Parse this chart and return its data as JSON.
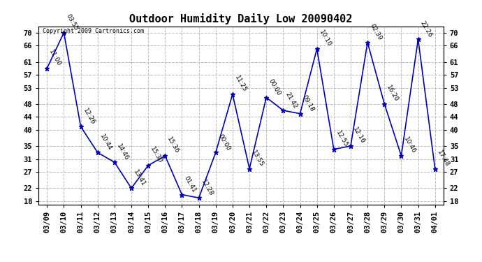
{
  "title": "Outdoor Humidity Daily Low 20090402",
  "copyright": "Copyright 2009 Cartronics.com",
  "x_labels": [
    "03/09",
    "03/10",
    "03/11",
    "03/12",
    "03/13",
    "03/14",
    "03/15",
    "03/16",
    "03/17",
    "03/18",
    "03/19",
    "03/20",
    "03/21",
    "03/22",
    "03/23",
    "03/24",
    "03/25",
    "03/26",
    "03/27",
    "03/28",
    "03/29",
    "03/30",
    "03/31",
    "04/01"
  ],
  "y_values": [
    59,
    70,
    41,
    33,
    30,
    22,
    29,
    32,
    20,
    19,
    33,
    51,
    28,
    50,
    46,
    45,
    65,
    34,
    35,
    67,
    48,
    32,
    68,
    28
  ],
  "time_labels": [
    "11:00",
    "03:55",
    "12:26",
    "10:44",
    "14:46",
    "13:41",
    "15:30",
    "15:36",
    "01:41",
    "12:28",
    "00:00",
    "11:25",
    "13:55",
    "00:00",
    "21:42",
    "09:18",
    "10:10",
    "12:55",
    "12:16",
    "02:39",
    "16:20",
    "10:46",
    "22:26",
    "17:48"
  ],
  "line_color": "#0000bb",
  "marker": "*",
  "marker_size": 5,
  "bg_color": "#ffffff",
  "grid_color": "#bbbbbb",
  "ylim": [
    17,
    72
  ],
  "yticks": [
    18,
    22,
    27,
    31,
    35,
    40,
    44,
    48,
    53,
    57,
    61,
    66,
    70
  ],
  "title_fontsize": 11,
  "label_fontsize": 6.5,
  "tick_fontsize": 7.5
}
